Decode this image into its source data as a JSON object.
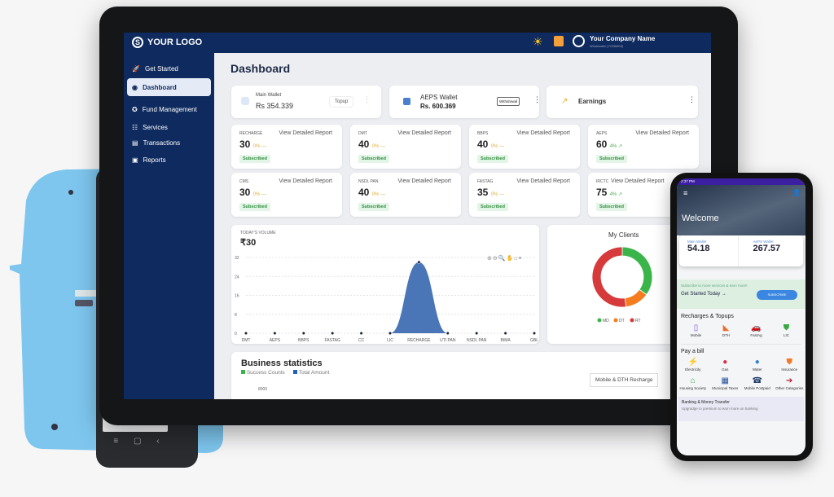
{
  "header": {
    "logo": "YOUR LOGO",
    "company": "Your Company Name",
    "company_sub": "Wholesaler (YCN0003)"
  },
  "sidebar": {
    "items": [
      {
        "label": "Get Started",
        "icon": "rocket-icon"
      },
      {
        "label": "Dashboard",
        "icon": "dashboard-icon",
        "active": true
      },
      {
        "label": "Fund Management",
        "icon": "fund-icon"
      },
      {
        "label": "Services",
        "icon": "services-icon"
      },
      {
        "label": "Transactions",
        "icon": "transactions-icon"
      },
      {
        "label": "Reports",
        "icon": "reports-icon"
      }
    ]
  },
  "main": {
    "title": "Dashboard",
    "wallets": [
      {
        "label": "Main Wallet",
        "value": "Rs 354.339",
        "button": "Topup"
      },
      {
        "label": "AEPS Wallet",
        "value": "Rs. 600.369",
        "button": "Withdrawal"
      },
      {
        "label": "Earnings"
      }
    ],
    "report_link": "View Detailed Report",
    "stats": [
      {
        "label": "RECHARGE",
        "value": "30",
        "pct": "0% —",
        "status": "Subscribed"
      },
      {
        "label": "DMT",
        "value": "40",
        "pct": "0% —",
        "status": "Subscribed"
      },
      {
        "label": "BBPS",
        "value": "40",
        "pct": "0% —",
        "status": "Subscribed"
      },
      {
        "label": "AEPS",
        "value": "60",
        "pct": "4% ↗",
        "status": "Subscribed",
        "up": true
      },
      {
        "label": "CMS",
        "value": "30",
        "pct": "0% —",
        "status": "Subscribed"
      },
      {
        "label": "NSDL PAN",
        "value": "40",
        "pct": "0% —",
        "status": "Subscribed"
      },
      {
        "label": "FASTAG",
        "value": "35",
        "pct": "0% —",
        "status": "Subscribed"
      },
      {
        "label": "IRCTC",
        "value": "75",
        "pct": "4% ↗",
        "status": "Subscribed",
        "up": true
      }
    ],
    "business": {
      "title": "Business statistics",
      "legend": [
        "Success Counts",
        "Total Amount"
      ],
      "dropdown": "Mobile & DTH Recharge",
      "ytick": "8000"
    }
  },
  "chart_data": [
    {
      "type": "area",
      "title": "TODAY'S VOLUME",
      "subtitle": "₹30",
      "categories": [
        "DMT",
        "AEPS",
        "BBPS",
        "FASTAG",
        "CC",
        "LIC",
        "RECHARGE",
        "UTI PAN",
        "NSDL PAN",
        "BIMA",
        "GBL"
      ],
      "values": [
        0,
        0,
        0,
        0,
        0,
        0,
        30,
        0,
        0,
        0,
        0
      ],
      "ylim": [
        0,
        32
      ],
      "yticks": [
        0,
        8,
        16,
        24,
        32
      ],
      "color": "#4a76b8",
      "grid": true
    },
    {
      "type": "pie",
      "title": "My Clients",
      "categories": [
        "MD",
        "DT",
        "RT"
      ],
      "values": [
        35,
        13,
        52
      ],
      "colors": [
        "#3bb54a",
        "#f57c1f",
        "#d63a3a"
      ],
      "legend": "bottom"
    }
  ],
  "phone": {
    "time": "2:37 PM",
    "welcome": "Welcome",
    "main_wallet_label": "Main Wallet",
    "main_wallet": "54.18",
    "aeps_wallet_label": "AePS Wallet",
    "aeps_wallet": "267.57",
    "promo": "Subscribe to more services & earn more!",
    "cta": "Get Started Today →",
    "subscribe": "SUBSCRIBE",
    "recharge_title": "Recharges & Topups",
    "recharge": [
      {
        "l": "Mobile",
        "i": "▯",
        "c": "#7b4fd6"
      },
      {
        "l": "DTH",
        "i": "◣",
        "c": "#f06b2a"
      },
      {
        "l": "FastAg",
        "i": "🚗",
        "c": "#e0336b"
      },
      {
        "l": "LIC",
        "i": "⛊",
        "c": "#3aa843"
      }
    ],
    "bill_title": "Pay a bill",
    "bills": [
      {
        "l": "Electricity",
        "i": "⚡",
        "c": "#e8d21f"
      },
      {
        "l": "Gas",
        "i": "●",
        "c": "#d6304a"
      },
      {
        "l": "Water",
        "i": "●",
        "c": "#2f80d6"
      },
      {
        "l": "Insurance",
        "i": "⛊",
        "c": "#f07a2a"
      },
      {
        "l": "Housing Society",
        "i": "⌂",
        "c": "#3aa843"
      },
      {
        "l": "Municipal Taxes",
        "i": "▦",
        "c": "#1f4f9a"
      },
      {
        "l": "Mobile Postpaid",
        "i": "☎",
        "c": "#1f3a6a"
      },
      {
        "l": "Other Categories",
        "i": "➔",
        "c": "#b01f3a"
      }
    ],
    "banking_title": "Banking & Money Transfer",
    "banking_sub": "Upgradge to premium to earn more on banking"
  }
}
